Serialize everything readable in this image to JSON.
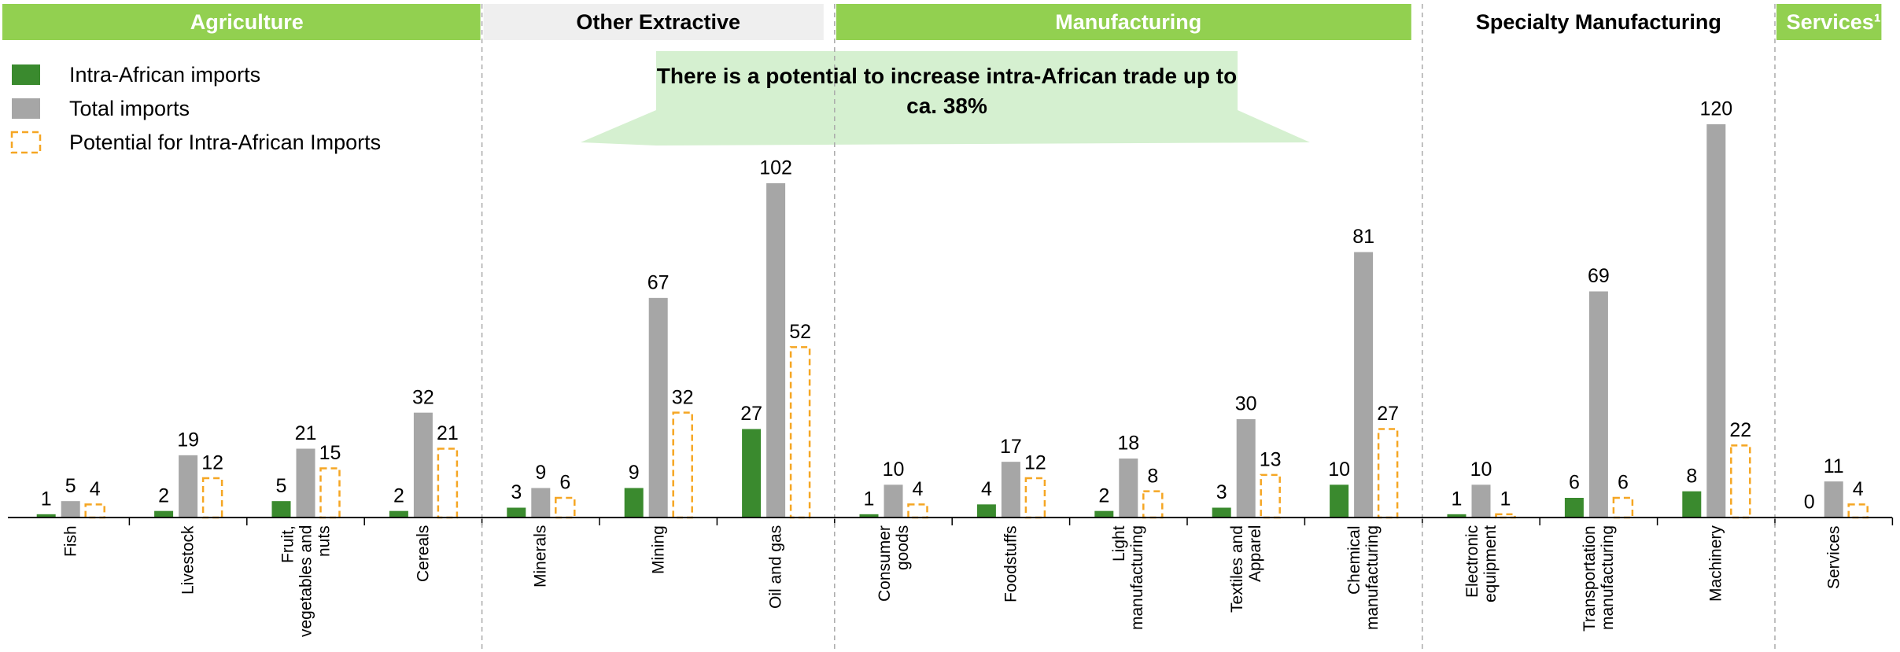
{
  "chart_data": {
    "type": "bar",
    "annotation": "There is a potential to increase intra-African trade up to ca. 38%",
    "groups": [
      {
        "name": "Agriculture",
        "color": "#92d050",
        "categories": [
          "Fish",
          "Livestock",
          "Fruit, vegetables and nuts",
          "Cereals"
        ]
      },
      {
        "name": "Other Extractive",
        "color": "#efefef",
        "categories": [
          "Minerals",
          "Mining",
          "Oil and gas"
        ]
      },
      {
        "name": "Manufacturing",
        "color": "#92d050",
        "categories": [
          "Consumer goods",
          "Foodstuffs",
          "Light manufacturing",
          "Textiles and Apparel",
          "Chemical manufacturing"
        ]
      },
      {
        "name": "Specialty Manufacturing",
        "color": "#ffffff",
        "categories": [
          "Electronic equipment",
          "Transportation manufacturing",
          "Machinery"
        ]
      },
      {
        "name": "Services¹",
        "color": "#92d050",
        "categories": [
          "Services"
        ]
      }
    ],
    "series": [
      {
        "name": "Intra-African imports",
        "color": "#3a8a2e",
        "style": "solid",
        "values": [
          1,
          2,
          5,
          2,
          3,
          9,
          27,
          1,
          4,
          2,
          3,
          10,
          1,
          6,
          8,
          0
        ]
      },
      {
        "name": "Total imports",
        "color": "#a6a6a6",
        "style": "solid",
        "values": [
          5,
          19,
          21,
          32,
          9,
          67,
          102,
          10,
          17,
          18,
          30,
          81,
          10,
          69,
          120,
          11
        ]
      },
      {
        "name": "Potential for Intra-African Imports",
        "color": "#f5a623",
        "style": "dashed",
        "values": [
          4,
          12,
          15,
          21,
          6,
          32,
          52,
          4,
          12,
          8,
          13,
          27,
          1,
          6,
          22,
          4
        ]
      }
    ]
  }
}
